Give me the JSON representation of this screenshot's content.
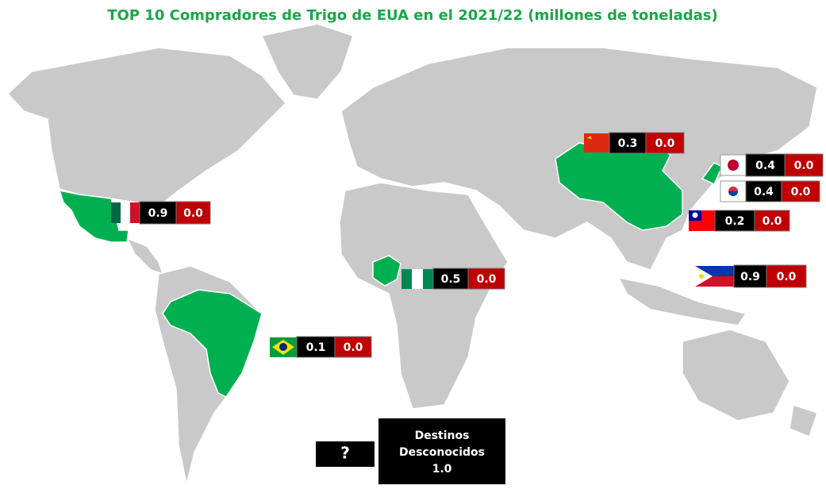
{
  "title": "TOP 10 Compradores de Trigo de EUA en el 2021/22 (millones de toneladas)",
  "buyers": [
    {
      "volume": "0.3",
      "other": "0.0"
    },
    {
      "volume": "0.4",
      "other": "0.0"
    },
    {
      "volume": "0.4",
      "other": "0.0"
    },
    {
      "volume": "0.2",
      "other": "0.0"
    },
    {
      "volume": "0.9",
      "other": "0.0"
    },
    {
      "volume": "0.9",
      "other": "0.0"
    },
    {
      "volume": "0.5",
      "other": "0.0"
    },
    {
      "volume": "0.1",
      "other": "0.0"
    }
  ],
  "unknown": {
    "icon": "?",
    "lines": [
      "Destinos",
      "Desconocidos"
    ],
    "value": "1.0"
  }
}
